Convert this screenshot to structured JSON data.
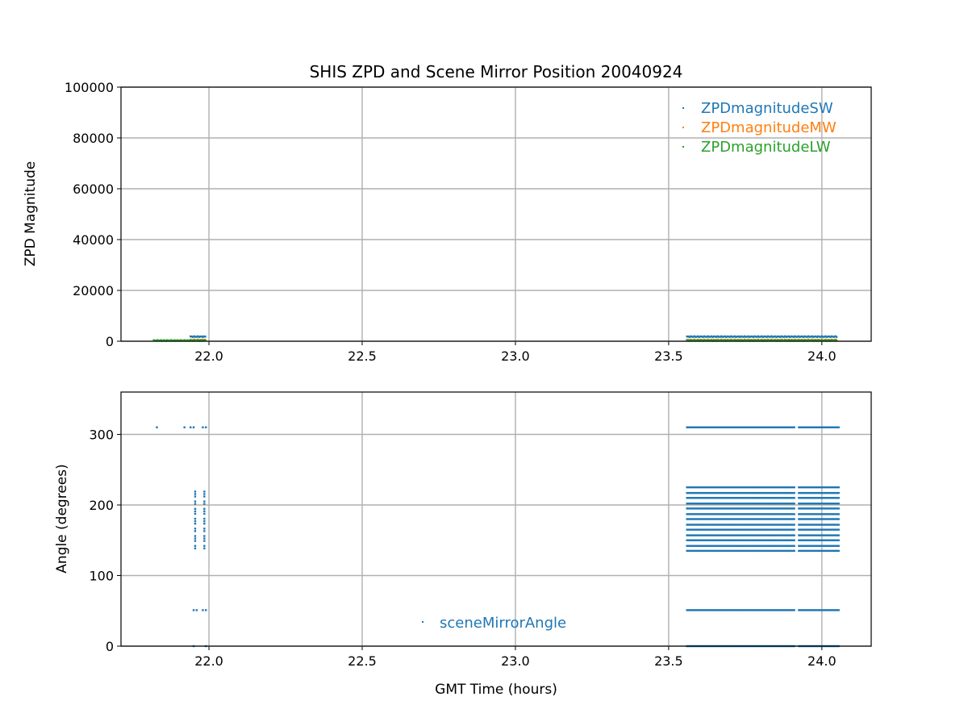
{
  "chart_data": [
    {
      "type": "scatter",
      "title": "SHIS ZPD and Scene Mirror Position 20040924",
      "xlabel": "",
      "ylabel": "ZPD Magnitude",
      "xlim": [
        21.713,
        24.161
      ],
      "ylim": [
        0,
        100000
      ],
      "xticks": [
        "22.0",
        "22.5",
        "23.0",
        "23.5",
        "24.0"
      ],
      "yticks": [
        "0",
        "20000",
        "40000",
        "60000",
        "80000",
        "100000"
      ],
      "grid": true,
      "legend_position": "top-right",
      "series": [
        {
          "name": "ZPDmagnitudeSW",
          "color": "#1f77b4",
          "segments": [
            {
              "x": [
                21.94,
                21.99
              ],
              "y": 1800
            },
            {
              "x": [
                23.56,
                24.05
              ],
              "y": 1800
            }
          ]
        },
        {
          "name": "ZPDmagnitudeMW",
          "color": "#ff7f0e",
          "segments": [
            {
              "x": [
                21.94,
                21.99
              ],
              "y": 500
            },
            {
              "x": [
                23.56,
                24.05
              ],
              "y": 500
            }
          ]
        },
        {
          "name": "ZPDmagnitudeLW",
          "color": "#2ca02c",
          "segments": [
            {
              "x": [
                21.82,
                21.99
              ],
              "y": 300
            },
            {
              "x": [
                23.56,
                24.05
              ],
              "y": 300
            }
          ]
        }
      ]
    },
    {
      "type": "scatter",
      "title": "",
      "xlabel": "GMT Time (hours)",
      "ylabel": "Angle (degrees)",
      "xlim": [
        21.713,
        24.161
      ],
      "ylim": [
        0,
        360
      ],
      "xticks": [
        "22.0",
        "22.5",
        "23.0",
        "23.5",
        "24.0"
      ],
      "yticks": [
        "0",
        "100",
        "200",
        "300"
      ],
      "grid": true,
      "legend_position": "lower-center",
      "series": [
        {
          "name": "sceneMirrorAngle",
          "color": "#1f77b4",
          "early_points": [
            [
              21.83,
              310
            ],
            [
              21.92,
              310
            ],
            [
              21.94,
              310
            ],
            [
              21.95,
              310
            ],
            [
              21.98,
              310
            ],
            [
              21.99,
              310
            ],
            [
              21.95,
              51
            ],
            [
              21.96,
              51
            ],
            [
              21.98,
              51
            ],
            [
              21.99,
              51
            ],
            [
              21.95,
              0
            ],
            [
              21.99,
              0
            ]
          ],
          "early_columns": [
            {
              "x": 21.955,
              "y": [
                135,
                225
              ]
            },
            {
              "x": 21.985,
              "y": [
                135,
                225
              ]
            }
          ],
          "blocks": [
            {
              "x": [
                23.56,
                23.91
              ]
            },
            {
              "x": [
                23.925,
                24.055
              ]
            }
          ],
          "block_levels": [
            310,
            225,
            217,
            210,
            202,
            195,
            187,
            180,
            172,
            165,
            157,
            150,
            142,
            135,
            51,
            0
          ]
        }
      ]
    }
  ]
}
